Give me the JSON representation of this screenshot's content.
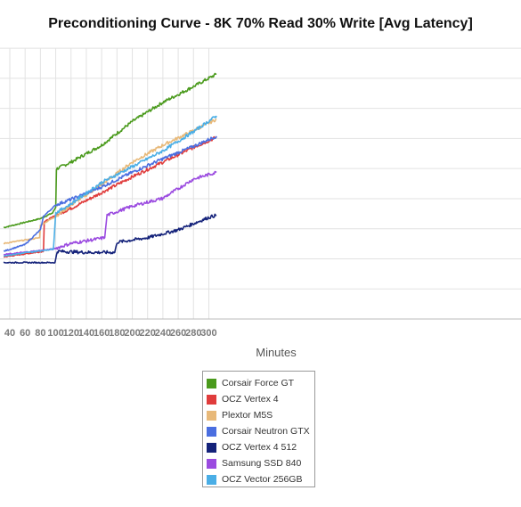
{
  "chart_data": {
    "type": "line",
    "title": "Preconditioning Curve - 8K 70% Read 30% Write [Avg Latency]",
    "xlabel": "Minutes",
    "ylabel": "",
    "x_ticks": [
      40,
      60,
      80,
      100,
      120,
      140,
      160,
      180,
      200,
      220,
      240,
      260,
      280,
      300
    ],
    "grid": true,
    "legend_position": "bottom-center",
    "series": [
      {
        "name": "Corsair Force GT",
        "color": "#4a9a1c",
        "points": [
          [
            32,
            6.05
          ],
          [
            80,
            6.45
          ],
          [
            96,
            6.7
          ],
          [
            100,
            6.95
          ],
          [
            101,
            8.65
          ],
          [
            120,
            8.95
          ],
          [
            160,
            9.7
          ],
          [
            200,
            10.75
          ],
          [
            240,
            11.6
          ],
          [
            280,
            12.3
          ],
          [
            310,
            12.85
          ]
        ]
      },
      {
        "name": "OCZ Vertex 4",
        "color": "#e03c3c",
        "points": [
          [
            32,
            4.75
          ],
          [
            84,
            5.0
          ],
          [
            85,
            6.3
          ],
          [
            100,
            6.6
          ],
          [
            120,
            6.9
          ],
          [
            160,
            7.6
          ],
          [
            200,
            8.3
          ],
          [
            240,
            8.95
          ],
          [
            280,
            9.6
          ],
          [
            310,
            10.05
          ]
        ]
      },
      {
        "name": "Plextor M5S",
        "color": "#e8b979",
        "points": [
          [
            32,
            5.35
          ],
          [
            79,
            5.6
          ],
          [
            80,
            6.15
          ],
          [
            100,
            6.55
          ],
          [
            120,
            7.05
          ],
          [
            160,
            7.95
          ],
          [
            200,
            8.95
          ],
          [
            240,
            9.7
          ],
          [
            280,
            10.35
          ],
          [
            310,
            10.85
          ]
        ]
      },
      {
        "name": "Corsair Neutron GTX",
        "color": "#4a6ee0",
        "points": [
          [
            32,
            5.0
          ],
          [
            60,
            5.3
          ],
          [
            80,
            5.95
          ],
          [
            84,
            6.55
          ],
          [
            100,
            7.05
          ],
          [
            120,
            7.3
          ],
          [
            160,
            7.85
          ],
          [
            200,
            8.5
          ],
          [
            240,
            9.1
          ],
          [
            280,
            9.65
          ],
          [
            310,
            10.1
          ]
        ]
      },
      {
        "name": "OCZ Vertex 4 512",
        "color": "#14227a",
        "points": [
          [
            32,
            4.5
          ],
          [
            99,
            4.5
          ],
          [
            102,
            5.0
          ],
          [
            140,
            4.95
          ],
          [
            177,
            4.95
          ],
          [
            180,
            5.4
          ],
          [
            220,
            5.6
          ],
          [
            260,
            5.95
          ],
          [
            300,
            6.5
          ],
          [
            310,
            6.6
          ]
        ]
      },
      {
        "name": "Samsung SSD 840",
        "color": "#9b4be0",
        "points": [
          [
            32,
            4.85
          ],
          [
            97,
            5.1
          ],
          [
            120,
            5.35
          ],
          [
            164,
            5.6
          ],
          [
            167,
            6.6
          ],
          [
            200,
            7.0
          ],
          [
            240,
            7.35
          ],
          [
            280,
            8.2
          ],
          [
            310,
            8.5
          ]
        ]
      },
      {
        "name": "OCZ Vector 256GB",
        "color": "#4aaee6",
        "points": [
          [
            32,
            4.8
          ],
          [
            97,
            5.1
          ],
          [
            100,
            6.7
          ],
          [
            120,
            7.1
          ],
          [
            160,
            8.05
          ],
          [
            200,
            8.75
          ],
          [
            240,
            9.45
          ],
          [
            280,
            10.3
          ],
          [
            310,
            11.0
          ]
        ]
      }
    ]
  }
}
